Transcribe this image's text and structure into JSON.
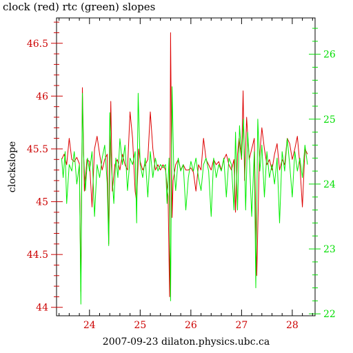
{
  "chart_data": {
    "type": "line",
    "title": "clock (red) rtc (green) slopes",
    "xlabel": "2007-09-23 dilaton.physics.ubc.ca",
    "ylabel": "clockslope",
    "xlim": [
      23.35,
      28.45
    ],
    "ylim_left": [
      43.92,
      46.74
    ],
    "ylim_right": [
      21.97,
      26.56
    ],
    "x_ticks": [
      24,
      25,
      26,
      27,
      28
    ],
    "x_tick_labels": [
      "24",
      "25",
      "26",
      "27",
      "28"
    ],
    "y_left_ticks": [
      44,
      44.5,
      45,
      45.5,
      46,
      46.5
    ],
    "y_left_tick_labels": [
      "44",
      "44.5",
      "45",
      "45.5",
      "46",
      "46.5"
    ],
    "y_right_ticks": [
      22,
      23,
      24,
      25,
      26
    ],
    "y_right_tick_labels": [
      "22",
      "23",
      "24",
      "25",
      "26"
    ],
    "grid": false,
    "colors": {
      "clock": "#dd0000",
      "rtc": "#00ee00",
      "left_axis": "#cc0000",
      "right_axis": "#00dd00",
      "frame": "#000000"
    },
    "series": [
      {
        "axis": "left",
        "color": "#dd0000",
        "x": [
          23.45,
          23.5,
          23.55,
          23.6,
          23.65,
          23.7,
          23.75,
          23.8,
          23.83,
          23.86,
          23.9,
          23.95,
          24.0,
          24.05,
          24.1,
          24.15,
          24.2,
          24.25,
          24.3,
          24.35,
          24.38,
          24.42,
          24.45,
          24.5,
          24.55,
          24.6,
          24.65,
          24.7,
          24.75,
          24.8,
          24.85,
          24.9,
          24.93,
          24.97,
          25.0,
          25.05,
          25.1,
          25.15,
          25.2,
          25.25,
          25.3,
          25.35,
          25.4,
          25.45,
          25.5,
          25.55,
          25.58,
          25.6,
          25.63,
          25.65,
          25.7,
          25.75,
          25.8,
          25.85,
          25.9,
          25.95,
          26.0,
          26.05,
          26.1,
          26.15,
          26.2,
          26.25,
          26.3,
          26.35,
          26.4,
          26.45,
          26.5,
          26.55,
          26.6,
          26.65,
          26.7,
          26.75,
          26.8,
          26.85,
          26.88,
          26.92,
          26.95,
          27.0,
          27.03,
          27.06,
          27.1,
          27.15,
          27.2,
          27.25,
          27.3,
          27.35,
          27.4,
          27.45,
          27.5,
          27.55,
          27.6,
          27.65,
          27.7,
          27.75,
          27.8,
          27.85,
          27.9,
          27.95,
          28.0,
          28.05,
          28.1,
          28.15,
          28.2,
          28.25,
          28.3
        ],
        "y": [
          45.4,
          45.45,
          45.35,
          45.6,
          45.4,
          45.38,
          45.42,
          45.36,
          44.15,
          46.08,
          45.1,
          45.4,
          45.38,
          44.95,
          45.5,
          45.62,
          45.45,
          45.3,
          45.4,
          45.45,
          44.6,
          45.95,
          45.1,
          45.35,
          45.4,
          45.3,
          45.45,
          45.35,
          45.3,
          45.85,
          45.6,
          45.1,
          45.0,
          45.5,
          45.38,
          45.3,
          45.35,
          45.4,
          45.85,
          45.5,
          45.3,
          45.35,
          45.3,
          45.35,
          45.3,
          45.05,
          44.1,
          46.6,
          44.85,
          45.2,
          45.35,
          45.4,
          45.3,
          45.35,
          45.3,
          45.3,
          45.32,
          45.28,
          45.1,
          45.35,
          45.3,
          45.6,
          45.4,
          45.35,
          45.3,
          45.4,
          45.35,
          45.38,
          45.3,
          45.4,
          45.45,
          45.35,
          45.3,
          45.4,
          44.9,
          45.45,
          45.6,
          45.4,
          46.05,
          45.2,
          45.8,
          45.4,
          45.5,
          45.6,
          44.3,
          45.4,
          45.7,
          45.5,
          45.35,
          45.4,
          45.3,
          45.45,
          45.55,
          45.3,
          45.4,
          45.35,
          45.6,
          45.55,
          45.4,
          45.5,
          45.62,
          45.35,
          44.95,
          45.5,
          45.45
        ]
      },
      {
        "axis": "right",
        "color": "#00ee00",
        "x": [
          23.45,
          23.48,
          23.52,
          23.55,
          23.6,
          23.65,
          23.7,
          23.75,
          23.8,
          23.83,
          23.86,
          23.88,
          23.92,
          23.96,
          24.0,
          24.05,
          24.1,
          24.15,
          24.2,
          24.25,
          24.3,
          24.35,
          24.38,
          24.4,
          24.43,
          24.48,
          24.52,
          24.56,
          24.6,
          24.65,
          24.7,
          24.75,
          24.8,
          24.85,
          24.9,
          24.93,
          24.96,
          25.0,
          25.05,
          25.1,
          25.15,
          25.2,
          25.25,
          25.3,
          25.35,
          25.4,
          25.45,
          25.5,
          25.53,
          25.57,
          25.6,
          25.63,
          25.66,
          25.7,
          25.75,
          25.8,
          25.85,
          25.9,
          25.95,
          26.0,
          26.05,
          26.1,
          26.15,
          26.2,
          26.25,
          26.3,
          26.35,
          26.4,
          26.45,
          26.5,
          26.55,
          26.6,
          26.65,
          26.7,
          26.75,
          26.8,
          26.85,
          26.88,
          26.92,
          26.96,
          27.0,
          27.04,
          27.08,
          27.12,
          27.16,
          27.2,
          27.25,
          27.28,
          27.32,
          27.36,
          27.4,
          27.45,
          27.5,
          27.55,
          27.6,
          27.65,
          27.7,
          27.75,
          27.8,
          27.85,
          27.9,
          27.95,
          28.0,
          28.05,
          28.1,
          28.15,
          28.2,
          28.25,
          28.3
        ],
        "y": [
          24.4,
          24.1,
          24.5,
          23.7,
          24.3,
          24.2,
          24.5,
          24.0,
          24.3,
          22.15,
          25.4,
          24.5,
          23.9,
          24.4,
          24.2,
          24.5,
          23.5,
          24.3,
          24.1,
          24.4,
          24.6,
          24.0,
          23.05,
          25.1,
          24.3,
          23.7,
          24.4,
          24.1,
          24.7,
          24.3,
          24.6,
          23.9,
          24.4,
          24.3,
          24.5,
          23.4,
          25.4,
          24.3,
          24.1,
          24.4,
          23.8,
          24.5,
          24.1,
          24.4,
          24.2,
          24.3,
          24.25,
          24.3,
          23.7,
          24.4,
          22.2,
          25.5,
          24.3,
          23.9,
          24.4,
          24.2,
          24.3,
          23.6,
          24.1,
          24.35,
          24.2,
          24.4,
          24.1,
          23.9,
          24.3,
          24.4,
          24.2,
          23.5,
          24.4,
          24.1,
          24.3,
          24.2,
          24.4,
          23.8,
          24.4,
          24.3,
          23.6,
          24.8,
          23.6,
          24.9,
          24.4,
          25.0,
          23.6,
          24.8,
          24.3,
          23.5,
          24.5,
          22.4,
          25.0,
          24.2,
          24.6,
          23.8,
          24.5,
          24.1,
          24.3,
          24.0,
          24.4,
          23.4,
          24.5,
          24.2,
          24.7,
          24.3,
          23.8,
          24.5,
          24.2,
          24.4,
          24.1,
          24.6,
          24.3
        ]
      }
    ]
  }
}
